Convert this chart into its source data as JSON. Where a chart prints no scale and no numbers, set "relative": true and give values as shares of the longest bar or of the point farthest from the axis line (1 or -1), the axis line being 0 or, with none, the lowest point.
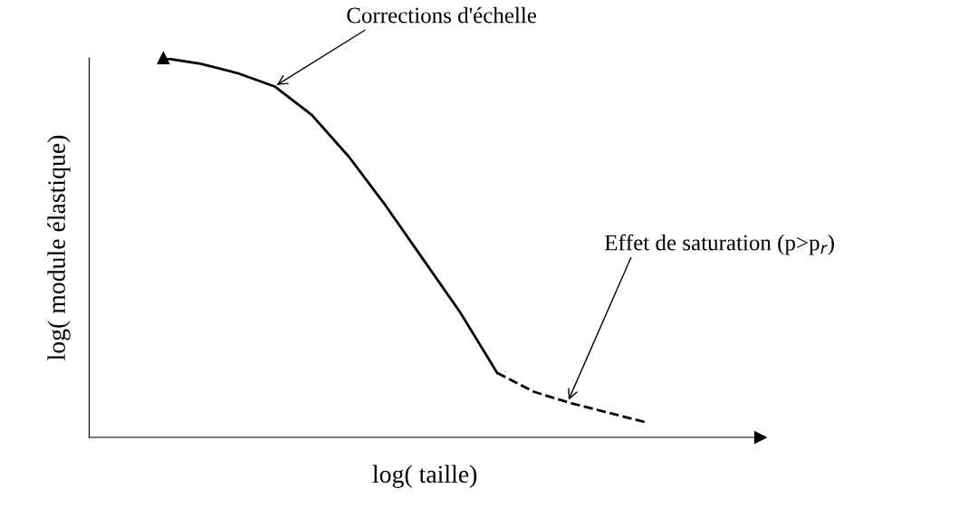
{
  "chart_data": {
    "type": "line",
    "relative": true,
    "xlabel": "log( taille)",
    "ylabel": "log( module élastique)",
    "categories": [
      null,
      null,
      null,
      null,
      null,
      null,
      null,
      null,
      null,
      null,
      null,
      null,
      null,
      null
    ],
    "series": [
      {
        "color": "#000000",
        "line_style": "solid",
        "values": [
          1.0,
          0.985,
          0.96,
          0.925,
          0.85,
          0.74,
          0.61,
          0.47,
          0.33,
          0.17,
          null,
          null,
          null,
          null
        ]
      },
      {
        "color": "#000000",
        "line_style": "dashed",
        "values": [
          null,
          null,
          null,
          null,
          null,
          null,
          null,
          null,
          null,
          0.17,
          0.12,
          0.09,
          0.065,
          0.04
        ]
      }
    ],
    "annotations": [
      "Corrections d'échelle",
      "Effet de saturation (p>p$_{r}$)"
    ],
    "legend": false,
    "marker": "none"
  }
}
